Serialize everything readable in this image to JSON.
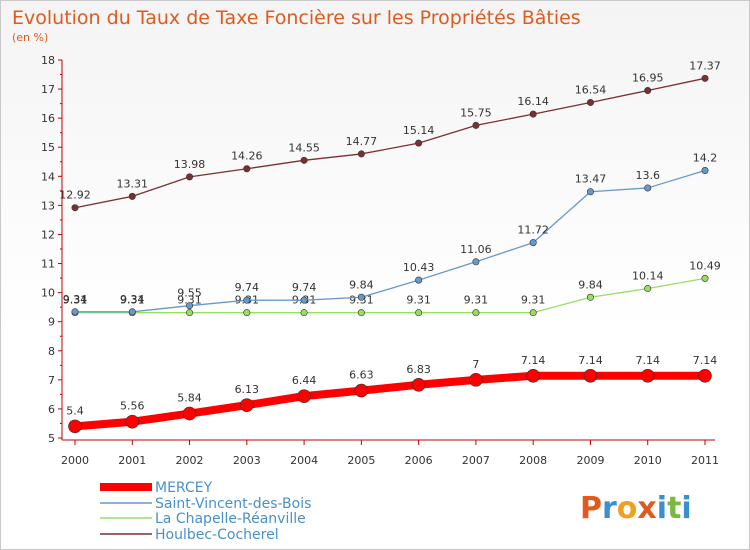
{
  "chart_data": {
    "type": "line",
    "title": "Evolution du Taux de Taxe Foncière sur les Propriétés Bâties",
    "subtitle": "(en %)",
    "x": [
      "2000",
      "2001",
      "2002",
      "2003",
      "2004",
      "2005",
      "2006",
      "2007",
      "2008",
      "2009",
      "2010",
      "2011"
    ],
    "ylim": [
      5,
      18
    ],
    "yticks": [
      5,
      6,
      7,
      8,
      9,
      10,
      11,
      12,
      13,
      14,
      15,
      16,
      17,
      18
    ],
    "grid": false,
    "legend_position": "bottom-left",
    "series": [
      {
        "name": "MERCEY",
        "color": "#ff0000",
        "values": [
          5.4,
          5.56,
          5.84,
          6.13,
          6.44,
          6.63,
          6.83,
          7,
          7.14,
          7.14,
          7.14,
          7.14
        ],
        "labels": [
          "5.4",
          "5.56",
          "5.84",
          "6.13",
          "6.44",
          "6.63",
          "6.83",
          "7",
          "7.14",
          "7.14",
          "7.14",
          "7.14"
        ]
      },
      {
        "name": "Saint-Vincent-des-Bois",
        "color": "#6699cc",
        "values": [
          9.34,
          9.34,
          9.55,
          9.74,
          9.74,
          9.84,
          10.43,
          11.06,
          11.72,
          13.47,
          13.6,
          14.2
        ],
        "labels": [
          "9.34",
          "9.34",
          "9.55",
          "9.74",
          "9.74",
          "9.84",
          "10.43",
          "11.06",
          "11.72",
          "13.47",
          "13.6",
          "14.2"
        ]
      },
      {
        "name": "La Chapelle-Réanville",
        "color": "#99dd66",
        "values": [
          9.31,
          9.31,
          9.31,
          9.31,
          9.31,
          9.31,
          9.31,
          9.31,
          9.31,
          9.84,
          10.14,
          10.49
        ],
        "labels": [
          "9.31",
          "9.31",
          "9.31",
          "9.31",
          "9.31",
          "9.31",
          "9.31",
          "9.31",
          "9.31",
          "9.84",
          "10.14",
          "10.49"
        ]
      },
      {
        "name": "Houlbec-Cocherel",
        "color": "#7a3030",
        "values": [
          12.92,
          13.31,
          13.98,
          14.26,
          14.55,
          14.77,
          15.14,
          15.75,
          16.14,
          16.54,
          16.95,
          17.37
        ],
        "labels": [
          "12.92",
          "13.31",
          "13.98",
          "14.26",
          "14.55",
          "14.77",
          "15.14",
          "15.75",
          "16.14",
          "16.54",
          "16.95",
          "17.37"
        ]
      }
    ]
  },
  "branding": {
    "logo_text": "Proxiti",
    "logo_colors": [
      "#e05a1e",
      "#3a8fd0",
      "#f0a020",
      "#e05a1e",
      "#3a8fd0",
      "#7ab840",
      "#3a8fd0"
    ]
  }
}
